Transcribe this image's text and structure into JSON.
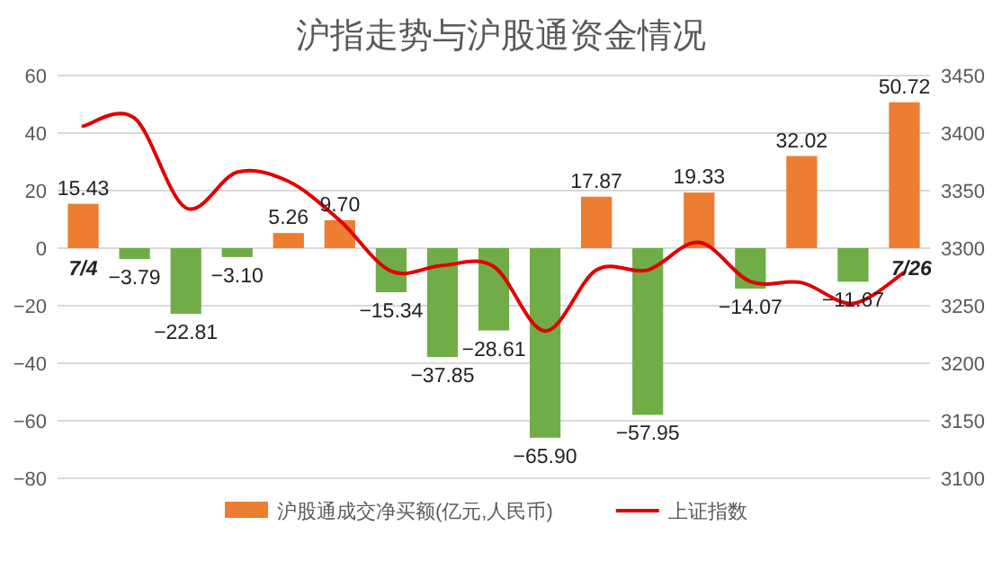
{
  "chart_data": {
    "type": "bar",
    "title": "沪指走势与沪股通资金情况",
    "categories": [
      "7/4",
      null,
      null,
      null,
      null,
      null,
      null,
      null,
      null,
      null,
      null,
      null,
      null,
      null,
      null,
      null,
      "7/26"
    ],
    "series": [
      {
        "name": "沪股通成交净买额(亿元,人民币)",
        "color": "#ed7d31",
        "values": [
          15.43,
          -3.79,
          -22.81,
          -3.1,
          5.26,
          9.7,
          -15.34,
          -37.85,
          -28.61,
          -65.9,
          17.87,
          -57.95,
          19.33,
          -14.07,
          32.02,
          -11.67,
          50.72
        ],
        "value_labels": [
          "15.43",
          "−3.79",
          "−22.81",
          "−3.10",
          "5.26",
          "9.70",
          "−15.34",
          "−37.85",
          "−28.61",
          "−65.90",
          "17.87",
          "−57.95",
          "19.33",
          "−14.07",
          "32.02",
          "−11.67",
          "50.72"
        ],
        "colors": [
          "#ed7d31",
          "#70ad47",
          "#70ad47",
          "#70ad47",
          "#ed7d31",
          "#ed7d31",
          "#70ad47",
          "#70ad47",
          "#70ad47",
          "#70ad47",
          "#ed7d31",
          "#70ad47",
          "#ed7d31",
          "#70ad47",
          "#ed7d31",
          "#70ad47",
          "#ed7d31"
        ]
      },
      {
        "name": "上证指数",
        "type": "line",
        "axis": "y2",
        "color": "#e00000",
        "values": [
          3406,
          3413,
          3335,
          3366,
          3358,
          3324,
          3280,
          3285,
          3284,
          3228,
          3281,
          3281,
          3305,
          3271,
          3270,
          3252,
          3279
        ]
      }
    ],
    "ylim": [
      -80,
      60
    ],
    "yticks": [
      -80,
      -60,
      -40,
      -20,
      0,
      20,
      40,
      60
    ],
    "y2lim": [
      3100,
      3450
    ],
    "y2ticks": [
      3100,
      3150,
      3200,
      3250,
      3300,
      3350,
      3400,
      3450
    ],
    "grid": "y",
    "legend": "bottom"
  }
}
